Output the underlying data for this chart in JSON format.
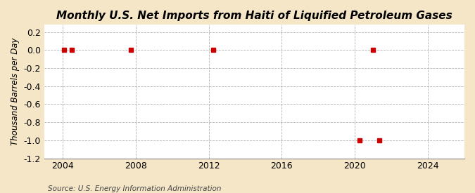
{
  "title": "Monthly U.S. Net Imports from Haiti of Liquified Petroleum Gases",
  "ylabel": "Thousand Barrels per Day",
  "source": "Source: U.S. Energy Information Administration",
  "background_color": "#f5e6c8",
  "plot_bg_color": "#ffffff",
  "xlim": [
    2003.0,
    2026.0
  ],
  "ylim": [
    -1.2,
    0.28
  ],
  "yticks": [
    0.2,
    0.0,
    -0.2,
    -0.4,
    -0.6,
    -0.8,
    -1.0,
    -1.2
  ],
  "xticks": [
    2004,
    2008,
    2012,
    2016,
    2020,
    2024
  ],
  "data_x": [
    2004.08,
    2004.5,
    2007.75,
    2012.25,
    2020.25,
    2021.0,
    2021.33
  ],
  "data_y": [
    0.0,
    0.0,
    0.0,
    0.0,
    -1.0,
    0.0,
    -1.0
  ],
  "marker_color": "#cc0000",
  "marker_size": 4,
  "grid_color": "#aaaaaa",
  "title_fontsize": 11,
  "label_fontsize": 8.5,
  "tick_fontsize": 9,
  "source_fontsize": 7.5
}
